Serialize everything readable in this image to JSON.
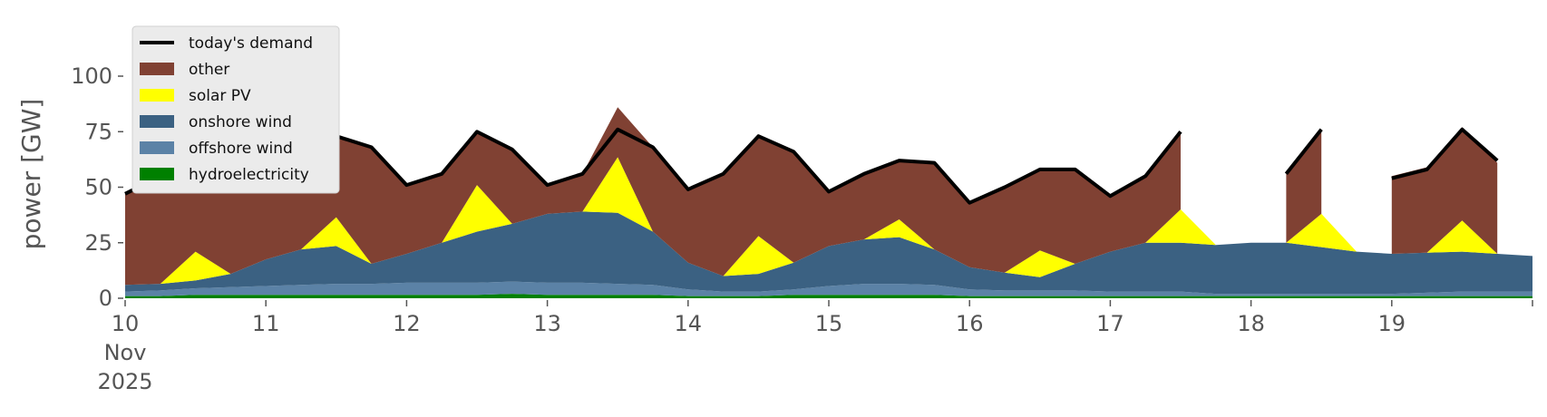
{
  "chart_data": {
    "type": "area",
    "ylabel": "power [GW]",
    "xlabel": "",
    "ylim": [
      0,
      120
    ],
    "xlim": [
      "2025-11-10T00:00",
      "2025-11-20T00:00"
    ],
    "grid": false,
    "legend_placement": "top-left",
    "y_ticks": [
      0,
      25,
      50,
      75,
      100
    ],
    "x_ticks": [
      {
        "date": "2025-11-10",
        "label": "10",
        "sub1": "Nov",
        "sub2": "2025"
      },
      {
        "date": "2025-11-11",
        "label": "11"
      },
      {
        "date": "2025-11-12",
        "label": "12"
      },
      {
        "date": "2025-11-13",
        "label": "13"
      },
      {
        "date": "2025-11-14",
        "label": "14"
      },
      {
        "date": "2025-11-15",
        "label": "15"
      },
      {
        "date": "2025-11-16",
        "label": "16"
      },
      {
        "date": "2025-11-17",
        "label": "17"
      },
      {
        "date": "2025-11-18",
        "label": "18"
      },
      {
        "date": "2025-11-19",
        "label": "19"
      }
    ],
    "x": [
      "2025-11-10T00:00",
      "2025-11-10T06:00",
      "2025-11-10T12:00",
      "2025-11-10T18:00",
      "2025-11-11T00:00",
      "2025-11-11T06:00",
      "2025-11-11T12:00",
      "2025-11-11T18:00",
      "2025-11-12T00:00",
      "2025-11-12T06:00",
      "2025-11-12T12:00",
      "2025-11-12T18:00",
      "2025-11-13T00:00",
      "2025-11-13T06:00",
      "2025-11-13T12:00",
      "2025-11-13T18:00",
      "2025-11-14T00:00",
      "2025-11-14T06:00",
      "2025-11-14T12:00",
      "2025-11-14T18:00",
      "2025-11-15T00:00",
      "2025-11-15T06:00",
      "2025-11-15T12:00",
      "2025-11-15T18:00",
      "2025-11-16T00:00",
      "2025-11-16T06:00",
      "2025-11-16T12:00",
      "2025-11-16T18:00",
      "2025-11-17T00:00",
      "2025-11-17T06:00",
      "2025-11-17T12:00",
      "2025-11-17T18:00",
      "2025-11-18T00:00",
      "2025-11-18T06:00",
      "2025-11-18T12:00",
      "2025-11-18T18:00",
      "2025-11-19T00:00",
      "2025-11-19T06:00",
      "2025-11-19T12:00",
      "2025-11-19T18:00",
      "2025-11-20T00:00"
    ],
    "demand": [
      47,
      55,
      73,
      69,
      52,
      56,
      73,
      68,
      51,
      56,
      75,
      67,
      51,
      56,
      76,
      68,
      49,
      56,
      73,
      66,
      48,
      56,
      62,
      61,
      43,
      50,
      58,
      58,
      46,
      55,
      75,
      null,
      null,
      56,
      76,
      null,
      54,
      58,
      76,
      62,
      null
    ],
    "series": [
      {
        "name": "hydroelectricity",
        "color": "#008000",
        "values": [
          1,
          1,
          1.5,
          1.5,
          1.5,
          1.5,
          1.5,
          1.5,
          1.5,
          1.5,
          1.5,
          2,
          1.5,
          1.5,
          1.5,
          1.5,
          1,
          1,
          1,
          1.5,
          1.5,
          1.5,
          1.5,
          1.5,
          1,
          1,
          1,
          1,
          1,
          1,
          1,
          1,
          1,
          1,
          1,
          1,
          1,
          1,
          1,
          1,
          1
        ]
      },
      {
        "name": "offshore wind",
        "color": "#5b82a6",
        "values": [
          2,
          2.5,
          3,
          3.5,
          4,
          4.5,
          5,
          5,
          5.5,
          5.5,
          5.5,
          5.5,
          5.5,
          5.5,
          5,
          4.5,
          3,
          2,
          2,
          2.5,
          4,
          5,
          5,
          4.5,
          3,
          2.5,
          2.5,
          2.5,
          2,
          2,
          2,
          1,
          1,
          1,
          1,
          1,
          1,
          1.5,
          2,
          2,
          2
        ]
      },
      {
        "name": "onshore wind",
        "color": "#3b6182",
        "values": [
          3,
          3,
          3.5,
          6,
          12,
          16,
          17,
          9,
          13,
          18,
          23,
          26,
          31,
          32,
          32,
          24,
          12,
          7,
          8,
          12,
          18,
          20,
          21,
          16,
          10,
          8,
          6,
          12,
          18,
          22,
          22,
          22,
          23,
          23,
          21,
          19,
          18,
          18,
          18,
          17,
          16
        ]
      },
      {
        "name": "solar PV",
        "color": "#ffff00",
        "values": [
          0,
          0,
          13,
          0,
          0,
          0,
          13,
          0,
          0,
          0,
          21,
          0,
          0,
          0,
          25,
          0,
          0,
          0,
          17,
          0,
          0,
          0,
          8,
          0,
          0,
          0,
          12,
          0,
          0,
          0,
          15,
          0,
          0,
          0,
          15,
          0,
          0,
          0,
          14,
          0,
          0
        ]
      },
      {
        "name": "other",
        "color": "#804133",
        "values": [
          41,
          48.5,
          52,
          58,
          34.5,
          34,
          36.5,
          52.5,
          31,
          31,
          24,
          33.5,
          13,
          17,
          22.5,
          38,
          33,
          46,
          45,
          50,
          24.5,
          29.5,
          26.5,
          39,
          29,
          38.5,
          36.5,
          42.5,
          25,
          30,
          35,
          null,
          null,
          31,
          38,
          null,
          35,
          38.5,
          42,
          41,
          null
        ]
      }
    ]
  }
}
